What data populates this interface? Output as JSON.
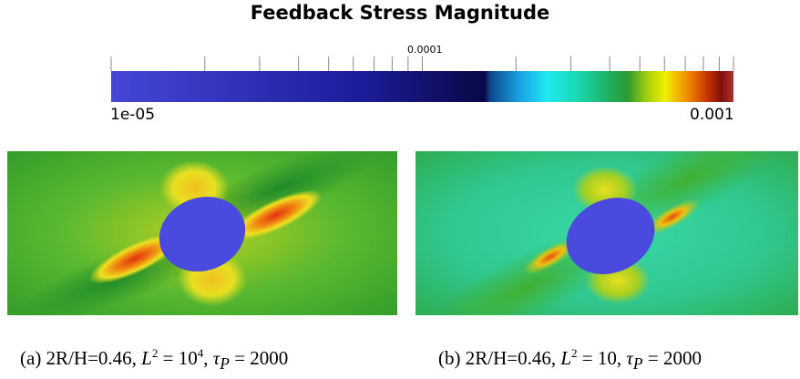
{
  "figure": {
    "title": "Feedback Stress Magnitude",
    "colorbar": {
      "min_label": "1e-05",
      "mid_label": "0.0001",
      "max_label": "0.001",
      "scale": "log"
    },
    "panels": [
      {
        "id": "a",
        "caption_prefix": "(a)  2R/H=0.46, ",
        "L_label": "L",
        "L_exp": "2",
        "L_value_base": "10",
        "L_value_exp": "4",
        "tau_label": "τ",
        "tau_sub": "P",
        "tau_value": "2000"
      },
      {
        "id": "b",
        "caption_prefix": "(b)  2R/H=0.46, ",
        "L_label": "L",
        "L_exp": "2",
        "L_value_base": "10",
        "L_value_exp": "",
        "tau_label": "τ",
        "tau_sub": "P",
        "tau_value": "2000"
      }
    ],
    "colors": {
      "cylinder": "#4a4adf",
      "background_green": "#2bb34a",
      "background_teal": "#1fe0b0"
    }
  }
}
